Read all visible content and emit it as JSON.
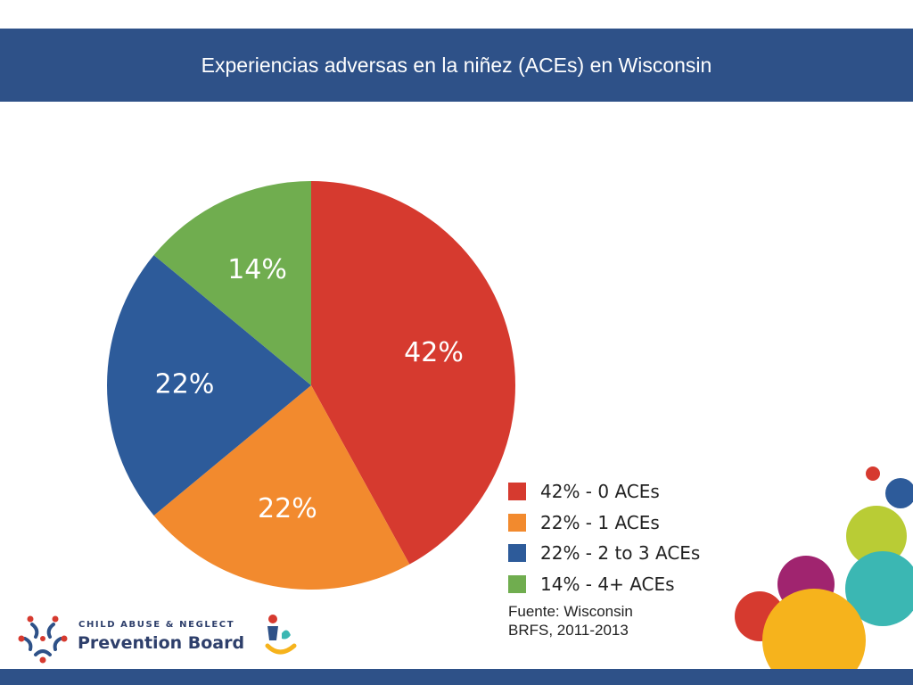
{
  "header": {
    "title": "Experiencias adversas en la niñez (ACEs) en Wisconsin"
  },
  "chart_data": {
    "type": "pie",
    "slices": [
      {
        "value": 42,
        "label": "42%",
        "legend": "42% - 0 ACEs",
        "color": "#d63a2f"
      },
      {
        "value": 22,
        "label": "22%",
        "legend": "22% - 1 ACEs",
        "color": "#f28a2e"
      },
      {
        "value": 22,
        "label": "22%",
        "legend": "22% - 2 to 3 ACEs",
        "color": "#2d5b9a"
      },
      {
        "value": 14,
        "label": "14%",
        "legend": "14% - 4+ ACEs",
        "color": "#70ad4f"
      }
    ],
    "legend_position": "bottom-right"
  },
  "source": {
    "line1": "Fuente: Wisconsin",
    "line2": "BRFS, 2011-2013"
  },
  "logo": {
    "line1": "CHILD ABUSE & NEGLECT",
    "line2": "Prevention Board"
  },
  "colors": {
    "brand_blue": "#2e5188",
    "decor_circles": [
      "#d63a2f",
      "#2d5b9a",
      "#b9cc35",
      "#a0246f",
      "#3bb7b3",
      "#d63a2f",
      "#f6b31c"
    ]
  }
}
